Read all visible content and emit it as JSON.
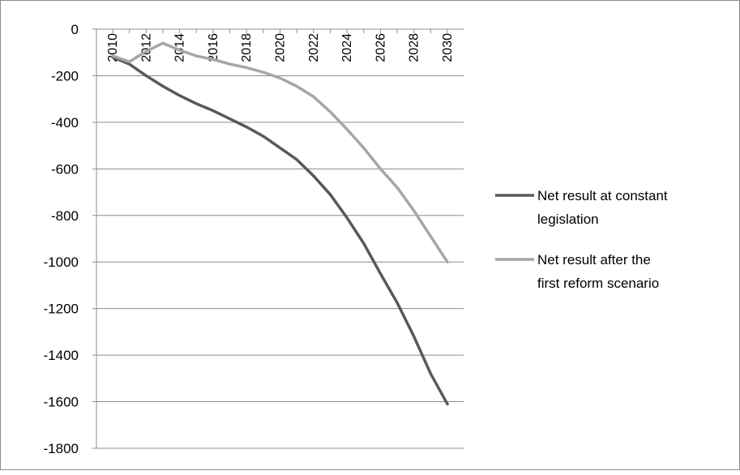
{
  "chart_data": {
    "type": "line",
    "x": [
      2010,
      2011,
      2012,
      2013,
      2014,
      2015,
      2016,
      2017,
      2018,
      2019,
      2020,
      2021,
      2022,
      2023,
      2024,
      2025,
      2026,
      2027,
      2028,
      2029,
      2030
    ],
    "x_tick_labels": [
      "2010",
      "2012",
      "2014",
      "2016",
      "2018",
      "2020",
      "2022",
      "2024",
      "2026",
      "2028",
      "2030"
    ],
    "y_tick_labels": [
      "0",
      "-200",
      "-400",
      "-600",
      "-800",
      "-1000",
      "-1200",
      "-1400",
      "-1600",
      "-1800"
    ],
    "ylim": [
      -1800,
      0
    ],
    "xlim": [
      2010,
      2030
    ],
    "grid": "horizontal",
    "legend_position": "right",
    "series": [
      {
        "name": "Net result at constant legislation",
        "color": "#595959",
        "values": [
          -120,
          -150,
          -200,
          -245,
          -285,
          -320,
          -350,
          -385,
          -420,
          -460,
          -510,
          -560,
          -630,
          -710,
          -810,
          -920,
          -1050,
          -1175,
          -1320,
          -1480,
          -1610
        ]
      },
      {
        "name": "Net result after the first reform scenario",
        "color": "#a6a6a6",
        "values": [
          -115,
          -140,
          -95,
          -60,
          -90,
          -115,
          -130,
          -150,
          -165,
          -185,
          -210,
          -245,
          -290,
          -355,
          -430,
          -510,
          -600,
          -680,
          -780,
          -890,
          -1000
        ]
      }
    ],
    "legend": [
      {
        "lines": [
          "Net result at constant",
          "legislation"
        ]
      },
      {
        "lines": [
          "Net result after the",
          "first reform scenario"
        ]
      }
    ]
  }
}
